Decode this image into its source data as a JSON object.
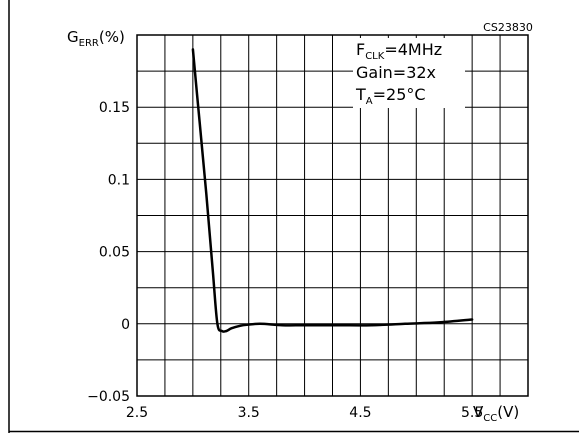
{
  "chart_data": {
    "type": "line",
    "figure_code": "CS23830",
    "ylabel": {
      "main": "G",
      "sub": "ERR",
      "rest": "(%)"
    },
    "xlabel": {
      "main": "V",
      "sub": "CC",
      "rest": "(V)"
    },
    "xlim": [
      2.5,
      6.0
    ],
    "ylim": [
      -0.05,
      0.2
    ],
    "x_ticks": [
      {
        "value": 2.5,
        "label": "2.5"
      },
      {
        "value": 3.5,
        "label": "3.5"
      },
      {
        "value": 4.5,
        "label": "4.5"
      },
      {
        "value": 5.5,
        "label": "5.5"
      }
    ],
    "y_ticks": [
      {
        "value": -0.05,
        "label": "−0.05"
      },
      {
        "value": 0,
        "label": "0"
      },
      {
        "value": 0.05,
        "label": "0.05"
      },
      {
        "value": 0.1,
        "label": "0.1"
      },
      {
        "value": 0.15,
        "label": "0.15"
      }
    ],
    "grid": true,
    "conditions": [
      {
        "main": "F",
        "sub": "CLK",
        "rest": "=4MHz"
      },
      {
        "main": "Gain=32x",
        "sub": "",
        "rest": ""
      },
      {
        "main": "T",
        "sub": "A",
        "rest": "=25°C"
      }
    ],
    "series": [
      {
        "x": [
          3.0,
          3.06,
          3.12,
          3.18,
          3.22,
          3.26,
          3.3,
          3.35,
          3.45,
          3.6,
          3.8,
          4.0,
          4.3,
          4.6,
          4.9,
          5.2,
          5.5
        ],
        "y": [
          0.19,
          0.14,
          0.09,
          0.035,
          0.0,
          -0.005,
          -0.005,
          -0.003,
          -0.001,
          0.0,
          -0.001,
          -0.001,
          -0.001,
          -0.001,
          0.0,
          0.001,
          0.003
        ]
      }
    ]
  }
}
